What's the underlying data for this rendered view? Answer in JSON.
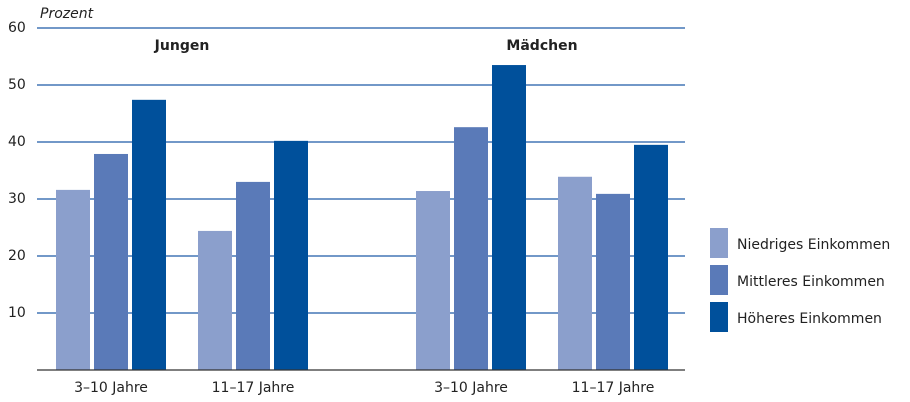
{
  "chart_data": {
    "type": "bar",
    "y_label": "Prozent",
    "groups": [
      "Jungen",
      "Mädchen"
    ],
    "categories": [
      "3–10 Jahre",
      "11–17 Jahre",
      "3–10 Jahre",
      "11–17 Jahre"
    ],
    "series": [
      {
        "name": "Niedriges Einkommen",
        "color": "#8b9fcc",
        "values": [
          31.6,
          24.4,
          31.4,
          33.9
        ]
      },
      {
        "name": "Mittleres Einkommen",
        "color": "#5a7ab8",
        "values": [
          37.9,
          33,
          42.6,
          30.9
        ]
      },
      {
        "name": "Höheres Einkommen",
        "color": "#00509b",
        "values": [
          47.4,
          40.2,
          53.5,
          39.5
        ]
      }
    ],
    "ylim": [
      0,
      60
    ],
    "yticks": [
      10,
      20,
      30,
      40,
      50,
      60
    ],
    "grid": true,
    "legend": "right"
  }
}
